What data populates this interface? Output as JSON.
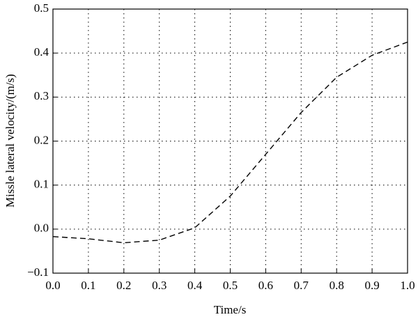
{
  "chart_data": {
    "type": "line",
    "xlabel": "Time/s",
    "ylabel": "Missle lateral velocity/(m/s)",
    "x": [
      0,
      0.1,
      0.2,
      0.3,
      0.4,
      0.5,
      0.6,
      0.7,
      0.8,
      0.9,
      1.0
    ],
    "series": [
      {
        "color": "#000000",
        "dash": true,
        "values": [
          -0.017,
          -0.022,
          -0.031,
          -0.025,
          0.003,
          0.075,
          0.17,
          0.265,
          0.345,
          0.395,
          0.425
        ]
      }
    ],
    "xlim": [
      0,
      1.0
    ],
    "xticks": [
      {
        "value": 0,
        "label": "0.0"
      },
      0.1,
      0.2,
      0.3,
      0.4,
      0.5,
      0.6,
      0.7,
      0.8,
      0.9,
      {
        "value": 1.0,
        "label": "1.0"
      }
    ],
    "ylim": [
      -0.1,
      0.5
    ],
    "yticks": [
      {
        "value": -0.1,
        "label": "−0.1"
      },
      {
        "value": 0,
        "label": "0.0"
      },
      0.1,
      0.2,
      0.3,
      0.4,
      0.5
    ],
    "grid": true
  }
}
